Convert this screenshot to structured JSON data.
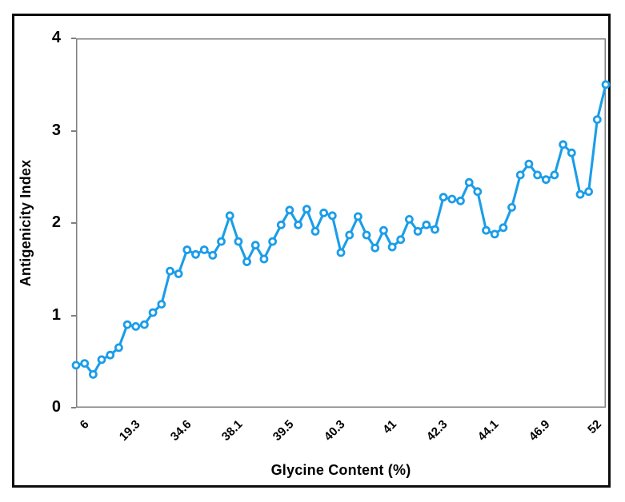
{
  "chart_data": {
    "type": "line",
    "title": "",
    "xlabel": "Glycine Content (%)",
    "ylabel": "Antigenicity Index",
    "ylim": [
      0,
      4
    ],
    "y_tick_labels": [
      "0",
      "1",
      "2",
      "3",
      "4"
    ],
    "x_tick_labels": [
      "6",
      "19.3",
      "34.6",
      "38.1",
      "39.5",
      "40.3",
      "41",
      "42.3",
      "44.1",
      "46.9",
      "52"
    ],
    "x_tick_indices": [
      0,
      6,
      12,
      18,
      24,
      30,
      36,
      42,
      48,
      54,
      60
    ],
    "grid": "off",
    "legend": "none",
    "marker_style": "open-circle",
    "values": [
      0.46,
      0.48,
      0.36,
      0.52,
      0.57,
      0.65,
      0.9,
      0.88,
      0.9,
      1.03,
      1.12,
      1.48,
      1.45,
      1.71,
      1.66,
      1.71,
      1.65,
      1.8,
      2.08,
      1.8,
      1.58,
      1.76,
      1.61,
      1.8,
      1.98,
      2.14,
      1.98,
      2.15,
      1.91,
      2.11,
      2.08,
      1.68,
      1.87,
      2.07,
      1.87,
      1.73,
      1.92,
      1.74,
      1.82,
      2.04,
      1.91,
      1.98,
      1.93,
      2.28,
      2.26,
      2.24,
      2.44,
      2.34,
      1.92,
      1.88,
      1.95,
      2.17,
      2.52,
      2.64,
      2.52,
      2.47,
      2.52,
      2.85,
      2.76,
      2.31,
      2.34,
      3.12,
      3.5
    ]
  },
  "style": {
    "line_color": "#1B9DE8",
    "marker_fill": "#FFFFFF",
    "axis_color": "#7F7F7F",
    "frame_color": "#0D0D0D",
    "text_color": "#000000"
  }
}
